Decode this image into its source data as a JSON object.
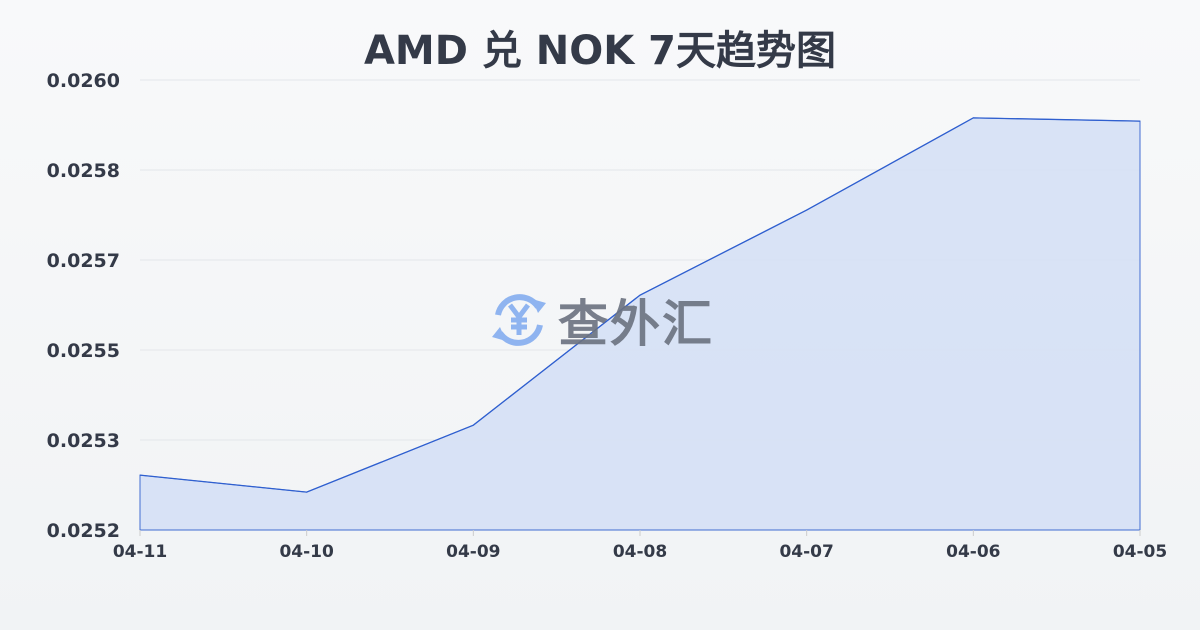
{
  "chart_data": {
    "type": "area",
    "title": "AMD 兑 NOK 7天趋势图",
    "x": [
      "04-11",
      "04-10",
      "04-09",
      "04-08",
      "04-07",
      "04-06",
      "04-05"
    ],
    "values": [
      0.02528,
      0.025249,
      0.025371,
      0.025608,
      0.025763,
      0.025931,
      0.025925
    ],
    "yticks": [
      "0.0252",
      "0.0253",
      "0.0255",
      "0.0257",
      "0.0258",
      "0.0260"
    ],
    "ylim": [
      0.02518,
      0.026
    ],
    "grid": true,
    "line_color": "#2f5fcf",
    "fill_color": "#d6e1f6"
  },
  "watermark": {
    "text": "查外汇",
    "icon": "yen-exchange-icon",
    "icon_color": "#8fb4f0"
  }
}
